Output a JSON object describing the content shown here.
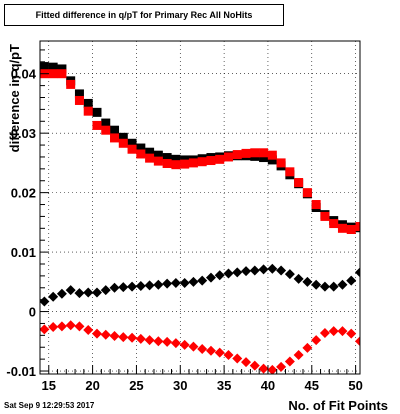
{
  "title": "Fitted difference in q/pT for Primary Rec All NoHits",
  "timestamp": "Sat Sep  9 12:29:53 2017",
  "chart_data": {
    "type": "scatter",
    "title": "Fitted difference in q/pT for Primary Rec All NoHits",
    "xlabel": "No. of Fit Points",
    "ylabel": "difference in q/pT",
    "xlim": [
      14,
      50.5
    ],
    "ylim": [
      -0.0105,
      0.0455
    ],
    "x_ticks": [
      15,
      20,
      25,
      30,
      35,
      40,
      45,
      50
    ],
    "y_ticks": [
      -0.01,
      0,
      0.01,
      0.02,
      0.03,
      0.04
    ],
    "y_tick_labels": [
      "-0.01",
      "0",
      "0.01",
      "0.02",
      "0.03",
      "0.04"
    ],
    "grid": true,
    "series": [
      {
        "marker": "square",
        "color": "#000000",
        "x": [
          14.5,
          15.5,
          16.5,
          17.5,
          18.5,
          19.5,
          20.5,
          21.5,
          22.5,
          23.5,
          24.5,
          25.5,
          26.5,
          27.5,
          28.5,
          29.5,
          30.5,
          31.5,
          32.5,
          33.5,
          34.5,
          35.5,
          36.5,
          37.5,
          38.5,
          39.5,
          40.5,
          41.5,
          42.5,
          43.5,
          44.5,
          45.5,
          46.5,
          47.5,
          48.5,
          49.5,
          50.5
        ],
        "y": [
          0.0412,
          0.0411,
          0.0408,
          0.0388,
          0.0366,
          0.035,
          0.0335,
          0.0317,
          0.0305,
          0.0293,
          0.0283,
          0.0275,
          0.0268,
          0.0263,
          0.0259,
          0.0256,
          0.0255,
          0.0255,
          0.0257,
          0.0259,
          0.026,
          0.0262,
          0.0262,
          0.0262,
          0.0261,
          0.0259,
          0.0255,
          0.0245,
          0.023,
          0.0215,
          0.0198,
          0.0175,
          0.0163,
          0.0153,
          0.0146,
          0.0142,
          0.0141
        ]
      },
      {
        "marker": "square",
        "color": "#ff0000",
        "x": [
          14.5,
          15.5,
          16.5,
          17.5,
          18.5,
          19.5,
          20.5,
          21.5,
          22.5,
          23.5,
          24.5,
          25.5,
          26.5,
          27.5,
          28.5,
          29.5,
          30.5,
          31.5,
          32.5,
          33.5,
          34.5,
          35.5,
          36.5,
          37.5,
          38.5,
          39.5,
          40.5,
          41.5,
          42.5,
          43.5,
          44.5,
          45.5,
          46.5,
          47.5,
          48.5,
          49.5,
          50.5
        ],
        "y": [
          0.04,
          0.04,
          0.04,
          0.0382,
          0.0355,
          0.0337,
          0.0313,
          0.0305,
          0.0292,
          0.0283,
          0.0273,
          0.0265,
          0.0258,
          0.0253,
          0.0249,
          0.0247,
          0.0248,
          0.025,
          0.0252,
          0.0254,
          0.0256,
          0.026,
          0.0264,
          0.0266,
          0.0267,
          0.0267,
          0.0263,
          0.025,
          0.0235,
          0.0217,
          0.02,
          0.018,
          0.016,
          0.0148,
          0.014,
          0.0138,
          0.0143
        ]
      },
      {
        "marker": "diamond",
        "color": "#000000",
        "x": [
          14.5,
          15.5,
          16.5,
          17.5,
          18.5,
          19.5,
          20.5,
          21.5,
          22.5,
          23.5,
          24.5,
          25.5,
          26.5,
          27.5,
          28.5,
          29.5,
          30.5,
          31.5,
          32.5,
          33.5,
          34.5,
          35.5,
          36.5,
          37.5,
          38.5,
          39.5,
          40.5,
          41.5,
          42.5,
          43.5,
          44.5,
          45.5,
          46.5,
          47.5,
          48.5,
          49.5,
          50.5
        ],
        "y": [
          0.0017,
          0.0025,
          0.003,
          0.0036,
          0.0031,
          0.0032,
          0.0032,
          0.0036,
          0.004,
          0.0041,
          0.0042,
          0.0043,
          0.0044,
          0.0045,
          0.0047,
          0.0048,
          0.0048,
          0.005,
          0.0052,
          0.0057,
          0.0061,
          0.0064,
          0.0066,
          0.0068,
          0.0069,
          0.0071,
          0.0072,
          0.0069,
          0.0063,
          0.0055,
          0.005,
          0.0045,
          0.0042,
          0.0042,
          0.0045,
          0.0052,
          0.0066
        ]
      },
      {
        "marker": "diamond",
        "color": "#ff0000",
        "x": [
          14.5,
          15.5,
          16.5,
          17.5,
          18.5,
          19.5,
          20.5,
          21.5,
          22.5,
          23.5,
          24.5,
          25.5,
          26.5,
          27.5,
          28.5,
          29.5,
          30.5,
          31.5,
          32.5,
          33.5,
          34.5,
          35.5,
          36.5,
          37.5,
          38.5,
          39.5,
          40.5,
          41.5,
          42.5,
          43.5,
          44.5,
          45.5,
          46.5,
          47.5,
          48.5,
          49.5,
          50.5
        ],
        "y": [
          -0.003,
          -0.0026,
          -0.0025,
          -0.0023,
          -0.0025,
          -0.0031,
          -0.0037,
          -0.0039,
          -0.0041,
          -0.0043,
          -0.0044,
          -0.0046,
          -0.0048,
          -0.005,
          -0.0051,
          -0.0053,
          -0.0056,
          -0.0059,
          -0.0063,
          -0.0066,
          -0.0069,
          -0.0073,
          -0.0079,
          -0.0085,
          -0.0091,
          -0.0096,
          -0.0098,
          -0.0093,
          -0.0084,
          -0.0073,
          -0.0061,
          -0.0048,
          -0.0036,
          -0.0033,
          -0.0033,
          -0.0037,
          -0.005
        ]
      }
    ]
  }
}
